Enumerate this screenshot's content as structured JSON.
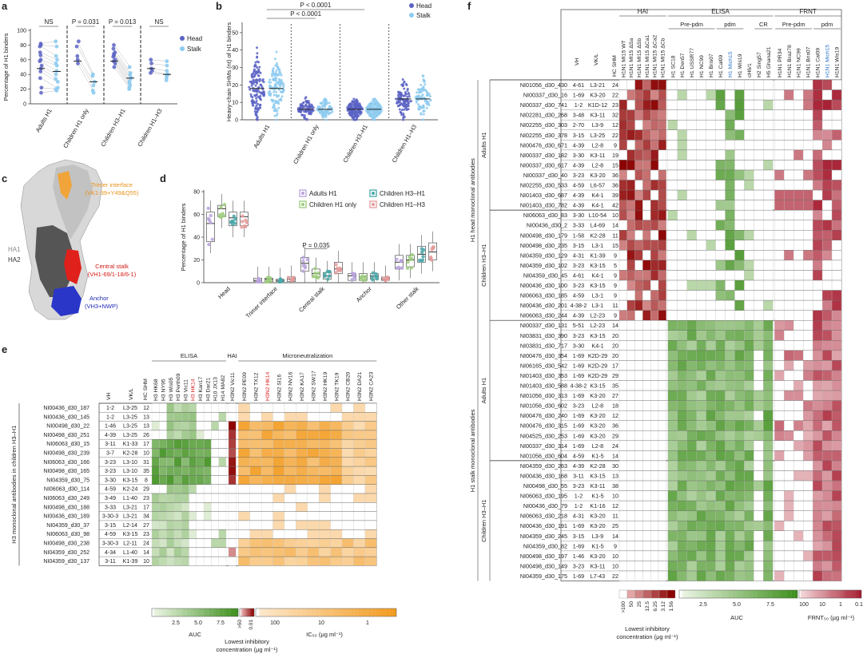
{
  "panel_labels": {
    "a": "a",
    "b": "b",
    "c": "c",
    "d": "d",
    "e": "e",
    "f": "f"
  },
  "colors": {
    "head": "#5b63c4",
    "stalk": "#8ecbf0",
    "adults": "#b9a3dd",
    "children_h1": "#9ccc7b",
    "children_h3h1": "#49a6a8",
    "children_h1h3": "#e49a9a",
    "hai": "#8b0000",
    "auc": "#3d8f1c",
    "ic50": "#f29b1f",
    "frnt": "#a3162a"
  },
  "chart_data": [
    {
      "id": "a",
      "type": "scatter",
      "ylabel": "Percentage of H1 binders",
      "ylim": [
        0,
        100
      ],
      "yticks": [
        0,
        20,
        40,
        60,
        80,
        100
      ],
      "categories": [
        "Adults H1",
        "Children H1 only",
        "Children H3–H1",
        "Children H1–H3"
      ],
      "legend": [
        "Head",
        "Stalk"
      ],
      "stats": [
        "NS",
        "P = 0.031",
        "P = 0.013",
        "NS"
      ],
      "series": [
        {
          "name": "Head",
          "values": [
            [
              82,
              80,
              78,
              70,
              66,
              60,
              58,
              52,
              48,
              44,
              35,
              22,
              15
            ],
            [
              85,
              78,
              65,
              60,
              55
            ],
            [
              80,
              75,
              70,
              68,
              66,
              64,
              60,
              58,
              55,
              50
            ],
            [
              60,
              55,
              48,
              45,
              42
            ]
          ]
        },
        {
          "name": "Stalk",
          "values": [
            [
              85,
              78,
              65,
              60,
              55,
              52,
              45,
              40,
              34,
              30,
              22,
              20,
              18
            ],
            [
              40,
              38,
              30,
              25,
              18,
              15
            ],
            [
              50,
              42,
              40,
              36,
              34,
              30,
              28,
              25,
              22,
              20
            ],
            [
              58,
              52,
              45,
              40,
              40,
              38,
              35,
              32
            ]
          ]
        }
      ],
      "medians": {
        "Head": [
          48,
          58,
          58,
          48
        ],
        "Stalk": [
          44,
          30,
          35,
          40
        ]
      }
    },
    {
      "id": "b",
      "type": "scatter",
      "ylabel": "Heavy-chain SHMs (nt) of H1 binders",
      "ylim": [
        0,
        55
      ],
      "yticks": [
        0,
        10,
        20,
        30,
        40,
        50
      ],
      "categories": [
        "Adults H1",
        "Children H1 only",
        "Children H3–H1",
        "Children H1–H3"
      ],
      "legend": [
        "Head",
        "Stalk"
      ],
      "stats": [
        "P < 0.0001",
        "P < 0.0001"
      ],
      "medians": {
        "Head": [
          18,
          6,
          6,
          12
        ],
        "Stalk": [
          18,
          6,
          6,
          12
        ]
      }
    },
    {
      "id": "d",
      "type": "box",
      "ylabel": "Percentage of H1 binders",
      "ylim": [
        0,
        80
      ],
      "yticks": [
        0,
        20,
        40,
        60,
        80
      ],
      "categories": [
        "Head",
        "Trimer interface",
        "Central stalk",
        "Anchor",
        "Other stalk"
      ],
      "legend": [
        "Adults H1",
        "Children H1 only",
        "Children H3–H1",
        "Children H1–H3"
      ],
      "stats": [
        "P = 0.035"
      ],
      "series": [
        {
          "name": "Adults H1",
          "median": [
            52,
            2,
            17,
            6,
            18
          ],
          "q1": [
            36,
            1,
            10,
            2,
            12
          ],
          "q3": [
            62,
            4,
            22,
            8,
            24
          ]
        },
        {
          "name": "Children H1 only",
          "median": [
            65,
            3,
            8,
            5,
            20
          ],
          "q1": [
            58,
            1,
            5,
            2,
            14
          ],
          "q3": [
            68,
            4,
            12,
            8,
            24
          ]
        },
        {
          "name": "Children H3–H1",
          "median": [
            57,
            2,
            6,
            6,
            25
          ],
          "q1": [
            50,
            1,
            3,
            3,
            18
          ],
          "q3": [
            62,
            3,
            9,
            8,
            32
          ]
        },
        {
          "name": "Children H1–H3",
          "median": [
            58,
            3,
            12,
            3,
            27
          ],
          "q1": [
            50,
            1,
            8,
            2,
            20
          ],
          "q3": [
            62,
            5,
            18,
            5,
            35
          ]
        }
      ]
    },
    {
      "id": "e",
      "type": "heatmap",
      "title_left": "H3 monoclonal antibodies in children H3–H1",
      "col_headers": [
        "VH",
        "VK/L",
        "HC SHM"
      ],
      "group_headers": [
        "ELISA",
        "HAI",
        "Microneutralization"
      ],
      "elisa_cols": [
        "H3 HK68",
        "H3 NY95",
        "H3 Wis05",
        "H3 Perth09",
        "H3 Vic11",
        "H3 HK14",
        "H3 Kan17",
        "H3 Dar21",
        "H10 JX13",
        "H14 MA82"
      ],
      "hai_cols": [
        "H3N2 Vic11"
      ],
      "mn_cols": [
        "H3N2 PE09",
        "H3N2 TX12",
        "H3N2 HK14",
        "H3N2 SI16",
        "H3N2 NV16",
        "H3N2 KA17",
        "H3N2 SW17",
        "H3N2 HK19",
        "H3N2 TK19",
        "H3N2 CB20",
        "H3N2 DA21",
        "H3N2 CA23"
      ],
      "rows": [
        {
          "name": "NI00436_d30_187",
          "vh": "1-2",
          "vkl": "L3-25",
          "shm": "12"
        },
        {
          "name": "NI00436_d30_145",
          "vh": "1-2",
          "vkl": "L3-25",
          "shm": "13"
        },
        {
          "name": "NI00498_d30_22",
          "vh": "1-46",
          "vkl": "L3-25",
          "shm": "13"
        },
        {
          "name": "NI00498_d30_251",
          "vh": "4-39",
          "vkl": "L3-25",
          "shm": "26"
        },
        {
          "name": "NI06063_d30_15",
          "vh": "3-11",
          "vkl": "K1-33",
          "shm": "17"
        },
        {
          "name": "NI00498_d30_239",
          "vh": "3-7",
          "vkl": "K2-28",
          "shm": "10"
        },
        {
          "name": "NI06063_d30_166",
          "vh": "3-23",
          "vkl": "L3-10",
          "shm": "31"
        },
        {
          "name": "NI00498_d30_165",
          "vh": "3-23",
          "vkl": "L3-10",
          "shm": "35"
        },
        {
          "name": "NI04359_d30_75",
          "vh": "3-30",
          "vkl": "K3-15",
          "shm": "8"
        },
        {
          "name": "NI06063_d30_114",
          "vh": "4-59",
          "vkl": "K2-24",
          "shm": "29"
        },
        {
          "name": "NI06063_d30_249",
          "vh": "3-49",
          "vkl": "L1-40",
          "shm": "23"
        },
        {
          "name": "NI00498_d30_188",
          "vh": "3-33",
          "vkl": "L3-21",
          "shm": "17"
        },
        {
          "name": "NI00436_d30_189",
          "vh": "3-30-3",
          "vkl": "L3-21",
          "shm": "34"
        },
        {
          "name": "NI04359_d30_37",
          "vh": "3-15",
          "vkl": "L2-14",
          "shm": "27"
        },
        {
          "name": "NI06063_d30_98",
          "vh": "4-59",
          "vkl": "K3-15",
          "shm": "23"
        },
        {
          "name": "NI00498_d30_238",
          "vh": "3-30-3",
          "vkl": "L2-11",
          "shm": "24"
        },
        {
          "name": "NI04359_d30_252",
          "vh": "4-34",
          "vkl": "L1-40",
          "shm": "14"
        },
        {
          "name": "NI04359_d30_137",
          "vh": "3-11",
          "vkl": "K1-39",
          "shm": "10"
        }
      ],
      "legend": {
        "auc_label": "AUC",
        "auc_ticks": [
          "2.5",
          "5.0",
          "7.5"
        ],
        "hai_label": "Lowest inhibitory concentration (μg ml⁻¹)",
        "hai_ticks": [
          ">50",
          "0.01"
        ],
        "ic50_label": "IC₅₀ (μg ml⁻¹)",
        "ic50_ticks": [
          "100",
          "10",
          "1"
        ]
      }
    },
    {
      "id": "f",
      "type": "heatmap",
      "col_headers": [
        "VH",
        "VK/L",
        "HC SHM"
      ],
      "group_headers": [
        "HAI",
        "ELISA",
        "FRNT"
      ],
      "sub_headers": [
        "Pre-pdm",
        "pdm",
        "CR",
        "Pre-pdm",
        "pdm"
      ],
      "hai_cols": [
        "H1N1 MI15 WT",
        "H1N1 MI15 ΔSa",
        "H1N1 MI15 ΔSb",
        "H1N1 MI15 ΔCa1",
        "H1N1 MI15 ΔCa2",
        "H1N1 MI15 ΔCb"
      ],
      "elisa_cols": [
        "H1 SC18",
        "H1 Den57",
        "H1 USSR77",
        "H1 NC99",
        "H1 Bris07",
        "H1 Cal09",
        "H1 Mich15",
        "H1 Wis19",
        "cH6/1",
        "H2 Sing57",
        "H5 Ghana21"
      ],
      "frnt_cols": [
        "H1N1 PR34",
        "H1N1 Braz78",
        "H1N1 NC99",
        "H1N1 Bris07",
        "H1N1 Cal09",
        "H1N1 Mich15",
        "H1N1 Wis19"
      ],
      "side_labels": [
        "H1 head monoclonal antibodies",
        "H1 stalk monoclonal antibodies"
      ],
      "group_labels": [
        "Adults H1",
        "Children H3–H1",
        "Adults H1",
        "Children H3–H1"
      ],
      "rows": [
        {
          "name": "NI01056_d30_430",
          "vh": "4-61",
          "vkl": "L3-21",
          "shm": "24"
        },
        {
          "name": "NI00337_d30_16",
          "vh": "1-69",
          "vkl": "K3-20",
          "shm": "22"
        },
        {
          "name": "NI00337_d30_741",
          "vh": "1-2",
          "vkl": "K1D-12",
          "shm": "23"
        },
        {
          "name": "NI02281_d30_268",
          "vh": "3-48",
          "vkl": "K3-11",
          "shm": "32"
        },
        {
          "name": "NI02255_d30_303",
          "vh": "2-70",
          "vkl": "L3-9",
          "shm": "12"
        },
        {
          "name": "NI02255_d30_378",
          "vh": "3-15",
          "vkl": "L3-25",
          "shm": "22"
        },
        {
          "name": "NI00476_d30_671",
          "vh": "4-39",
          "vkl": "L2-8",
          "shm": "9"
        },
        {
          "name": "NI00337_d30_182",
          "vh": "3-30",
          "vkl": "K3-11",
          "shm": "19"
        },
        {
          "name": "NI00337_d30_617",
          "vh": "4-39",
          "vkl": "L2-8",
          "shm": "15"
        },
        {
          "name": "NI00337_d30_40",
          "vh": "3-23",
          "vkl": "K3-20",
          "shm": "36"
        },
        {
          "name": "NI02255_d30_533",
          "vh": "4-59",
          "vkl": "L6-57",
          "shm": "36"
        },
        {
          "name": "NI01403_d30_687",
          "vh": "4-39",
          "vkl": "K4-1",
          "shm": "39"
        },
        {
          "name": "NI01403_d30_782",
          "vh": "4-39",
          "vkl": "K4-1",
          "shm": "42"
        },
        {
          "name": "NI06063_d30_83",
          "vh": "3-30",
          "vkl": "L10-54",
          "shm": "10"
        },
        {
          "name": "NI00436_d30_2",
          "vh": "3-33",
          "vkl": "L4-69",
          "shm": "14"
        },
        {
          "name": "NI00498_d30_179",
          "vh": "1-58",
          "vkl": "K2-28",
          "shm": "11"
        },
        {
          "name": "NI00498_d30_235",
          "vh": "3-15",
          "vkl": "L3-1",
          "shm": "15"
        },
        {
          "name": "NI04359_d30_129",
          "vh": "4-31",
          "vkl": "K1-39",
          "shm": "9"
        },
        {
          "name": "NI04359_d30_102",
          "vh": "3-23",
          "vkl": "K3-15",
          "shm": "5"
        },
        {
          "name": "NI04359_d30_45",
          "vh": "4-61",
          "vkl": "K4-1",
          "shm": "9"
        },
        {
          "name": "NI00436_d30_100",
          "vh": "3-23",
          "vkl": "K3-15",
          "shm": "9"
        },
        {
          "name": "NI06063_d30_185",
          "vh": "4-59",
          "vkl": "L3-1",
          "shm": "9"
        },
        {
          "name": "NI00436_d30_201",
          "vh": "4-38-2",
          "vkl": "L3-1",
          "shm": "11"
        },
        {
          "name": "NI06063_d30_244",
          "vh": "4-39",
          "vkl": "L2-23",
          "shm": "9"
        },
        {
          "name": "NI00337_d30_131",
          "vh": "5-51",
          "vkl": "L2-23",
          "shm": "14"
        },
        {
          "name": "NI03831_d30_390",
          "vh": "3-23",
          "vkl": "K3-15",
          "shm": "20"
        },
        {
          "name": "NI03831_d30_717",
          "vh": "3-30",
          "vkl": "K4-1",
          "shm": "20"
        },
        {
          "name": "NI00476_d30_354",
          "vh": "1-69",
          "vkl": "K2D-29",
          "shm": "20"
        },
        {
          "name": "NI06165_d30_542",
          "vh": "1-69",
          "vkl": "K2D-29",
          "shm": "17"
        },
        {
          "name": "NI01403_d30_353",
          "vh": "1-69",
          "vkl": "K2D-29",
          "shm": "29"
        },
        {
          "name": "NI01403_d30_588",
          "vh": "4-38-2",
          "vkl": "K3-15",
          "shm": "35"
        },
        {
          "name": "NI01056_d30_313",
          "vh": "1-69",
          "vkl": "K3-20",
          "shm": "27"
        },
        {
          "name": "NI01056_d30_602",
          "vh": "3-23",
          "vkl": "L2-8",
          "shm": "18"
        },
        {
          "name": "NI00476_d30_240",
          "vh": "1-69",
          "vkl": "K3-20",
          "shm": "12"
        },
        {
          "name": "NI00476_d30_315",
          "vh": "1-69",
          "vkl": "K3-20",
          "shm": "36"
        },
        {
          "name": "NI04525_d30_253",
          "vh": "1-69",
          "vkl": "K3-20",
          "shm": "29"
        },
        {
          "name": "NI00337_d30_314",
          "vh": "1-69",
          "vkl": "L2-8",
          "shm": "24"
        },
        {
          "name": "NI01056_d30_604",
          "vh": "4-59",
          "vkl": "K1-5",
          "shm": "14"
        },
        {
          "name": "NI04359_d30_263",
          "vh": "4-39",
          "vkl": "K2-28",
          "shm": "30"
        },
        {
          "name": "NI00436_d30_168",
          "vh": "3-11",
          "vkl": "K3-15",
          "shm": "13"
        },
        {
          "name": "NI00498_d30_55",
          "vh": "3-23",
          "vkl": "K3-11",
          "shm": "38"
        },
        {
          "name": "NI06063_d30_195",
          "vh": "1-2",
          "vkl": "K1-5",
          "shm": "10"
        },
        {
          "name": "NI00436_d30_79",
          "vh": "1-2",
          "vkl": "K1-16",
          "shm": "12"
        },
        {
          "name": "NI06063_d30_218",
          "vh": "4-31",
          "vkl": "K3-20",
          "shm": "11"
        },
        {
          "name": "NI00436_d30_191",
          "vh": "1-69",
          "vkl": "K3-20",
          "shm": "25"
        },
        {
          "name": "NI04359_d30_245",
          "vh": "3-15",
          "vkl": "L3-9",
          "shm": "14"
        },
        {
          "name": "NI04359_d30_82",
          "vh": "1-69",
          "vkl": "K1-5",
          "shm": "9"
        },
        {
          "name": "NI00498_d30_197",
          "vh": "1-46",
          "vkl": "K3-20",
          "shm": "10"
        },
        {
          "name": "NI00498_d30_149",
          "vh": "3-23",
          "vkl": "K3-11",
          "shm": "10"
        },
        {
          "name": "NI04359_d30_175",
          "vh": "1-69",
          "vkl": "L7-43",
          "shm": "22"
        }
      ],
      "legend": {
        "hai_ticks": [
          ">100",
          "50",
          "25",
          "12.5",
          "6.25",
          "3.12",
          "1.56"
        ],
        "hai_label": "Lowest inhibitory concentration (μg ml⁻¹)",
        "auc_label": "AUC",
        "auc_ticks": [
          "2.5",
          "5.0",
          "7.5"
        ],
        "frnt_label": "FRNT₅₀ (μg ml⁻¹)",
        "frnt_ticks": [
          "100",
          "10",
          "1",
          "0.1"
        ]
      }
    }
  ],
  "panel_c": {
    "labels": [
      "Trimer interface",
      "(VK1-39+Y49&Q55)",
      "HA1",
      "HA2",
      "Central stalk",
      "(VH1-69/1-18/6-1)",
      "Anchor",
      "(VH3+NWP)"
    ]
  }
}
